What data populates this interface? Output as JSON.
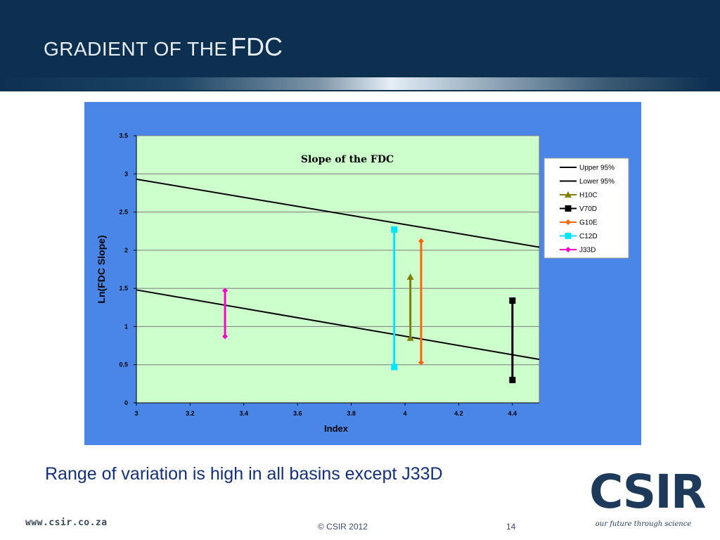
{
  "slide": {
    "title_small": "GRADIENT OF THE",
    "title_big": "FDC",
    "caption": "Range of variation is high in all basins except J33D",
    "footer_url": "www.csir.co.za",
    "footer_copy": "© CSIR  2012",
    "page_number": "14",
    "logo_text": "CSIR",
    "logo_tagline": "our future through science"
  },
  "colors": {
    "header_bg": "#0d3050",
    "chart_panel_bg": "#4a86e8",
    "plot_bg": "#ccffcc",
    "caption": "#13307a"
  },
  "chart_data": {
    "type": "line",
    "title": "Slope of the FDC",
    "xlabel": "Index",
    "ylabel": "Ln(FDC Slope)",
    "xlim": [
      3,
      4.5
    ],
    "ylim": [
      0,
      3.5
    ],
    "xticks": [
      "3",
      "3.2",
      "3.4",
      "3.6",
      "3.8",
      "4",
      "4.2",
      "4.4"
    ],
    "yticks": [
      "0",
      "0.5",
      "1",
      "1.5",
      "2",
      "2.5",
      "3",
      "3.5"
    ],
    "grid": "horizontal",
    "legend_position": "right",
    "series": [
      {
        "name": "Upper 95%",
        "marker": "none",
        "color": "#000000",
        "x": [
          3,
          4.5
        ],
        "y": [
          2.93,
          2.04
        ]
      },
      {
        "name": "Lower 95%",
        "marker": "none",
        "color": "#000000",
        "x": [
          3,
          4.5
        ],
        "y": [
          1.48,
          0.57
        ]
      },
      {
        "name": "H10C",
        "marker": "triangle",
        "color": "#808000",
        "x": [
          4.02,
          4.02
        ],
        "y": [
          0.85,
          1.65
        ]
      },
      {
        "name": "V70D",
        "marker": "square",
        "color": "#000000",
        "x": [
          4.4,
          4.4
        ],
        "y": [
          0.3,
          1.34
        ]
      },
      {
        "name": "G10E",
        "marker": "diamond",
        "color": "#ff6600",
        "x": [
          4.06,
          4.06
        ],
        "y": [
          0.53,
          2.12
        ]
      },
      {
        "name": "C12D",
        "marker": "square",
        "color": "#00e5ff",
        "x": [
          3.96,
          3.96
        ],
        "y": [
          0.47,
          2.27
        ]
      },
      {
        "name": "J33D",
        "marker": "diamond",
        "color": "#ff00cc",
        "x": [
          3.33,
          3.33
        ],
        "y": [
          0.87,
          1.47
        ]
      }
    ]
  }
}
